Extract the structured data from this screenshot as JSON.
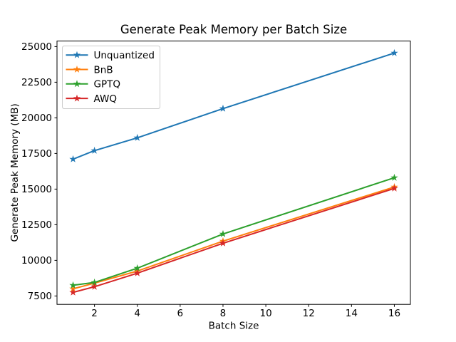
{
  "figure": {
    "background": "#ffffff",
    "spine_color": "#000000",
    "legend_border_color": "#cccccc"
  },
  "chart_data": {
    "type": "line",
    "title": "Generate Peak Memory per Batch Size",
    "xlabel": "Batch Size",
    "ylabel": "Generate Peak Memory (MB)",
    "x": [
      1,
      2,
      4,
      8,
      16
    ],
    "series": [
      {
        "name": "Unquantized",
        "color": "#1f77b4",
        "marker": "star",
        "values": [
          17100,
          17700,
          18600,
          20650,
          24550
        ]
      },
      {
        "name": "BnB",
        "color": "#ff7f0e",
        "marker": "star",
        "values": [
          8000,
          8400,
          9250,
          11350,
          15150
        ]
      },
      {
        "name": "GPTQ",
        "color": "#2ca02c",
        "marker": "star",
        "values": [
          8250,
          8450,
          9450,
          11850,
          15800
        ]
      },
      {
        "name": "AWQ",
        "color": "#d62728",
        "marker": "star",
        "values": [
          7750,
          8150,
          9100,
          11200,
          15050
        ]
      }
    ],
    "xticks": [
      2,
      4,
      6,
      8,
      10,
      12,
      14,
      16
    ],
    "yticks": [
      7500,
      10000,
      12500,
      15000,
      17500,
      20000,
      22500,
      25000
    ],
    "xlim": [
      0.25,
      16.75
    ],
    "ylim": [
      6910,
      25390
    ],
    "legend_position": "upper left",
    "grid": false
  }
}
